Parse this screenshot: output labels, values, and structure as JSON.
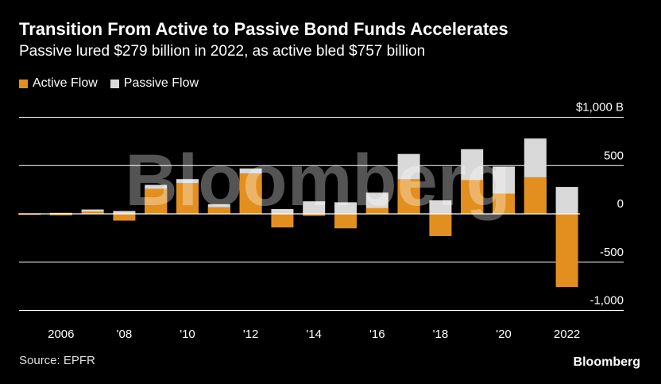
{
  "title": "Transition From Active to Passive Bond Funds Accelerates",
  "subtitle": "Passive lured $279 billion in 2022, as active bled $757 billion",
  "source": "Source: EPFR",
  "brand": "Bloomberg",
  "watermark": "Bloomberg",
  "colors": {
    "active": "#E38F1F",
    "passive": "#D9D9D9",
    "background": "#000000",
    "grid": "#FFFFFF"
  },
  "chart_data": {
    "type": "bar",
    "stacked": false,
    "categories": [
      "2005",
      "2006",
      "2007",
      "2008",
      "2009",
      "2010",
      "2011",
      "2012",
      "2013",
      "2014",
      "2015",
      "2016",
      "2017",
      "2018",
      "2019",
      "2020",
      "2021",
      "2022"
    ],
    "x_tick_labels": [
      "2006",
      "'08",
      "'10",
      "'12",
      "'14",
      "'16",
      "'18",
      "'20",
      "2022"
    ],
    "x_tick_categories": [
      "2006",
      "2008",
      "2010",
      "2012",
      "2014",
      "2016",
      "2018",
      "2020",
      "2022"
    ],
    "series": [
      {
        "name": "Active Flow",
        "color": "#E38F1F",
        "values": [
          -10,
          -15,
          25,
          -70,
          260,
          320,
          70,
          420,
          -140,
          -20,
          -150,
          60,
          360,
          -230,
          350,
          210,
          380,
          -757
        ]
      },
      {
        "name": "Passive Flow",
        "color": "#D9D9D9",
        "values": [
          5,
          10,
          45,
          30,
          300,
          360,
          100,
          470,
          50,
          130,
          120,
          220,
          620,
          140,
          670,
          490,
          780,
          279
        ]
      }
    ],
    "y_ticks": [
      1000,
      500,
      0,
      -500,
      -1000
    ],
    "y_tick_labels": [
      "$1,000 B",
      "500",
      "0",
      "-500",
      "-1,000"
    ],
    "ylim": [
      -1000,
      1000
    ],
    "legend_position": "top-left",
    "grid": "horizontal"
  }
}
